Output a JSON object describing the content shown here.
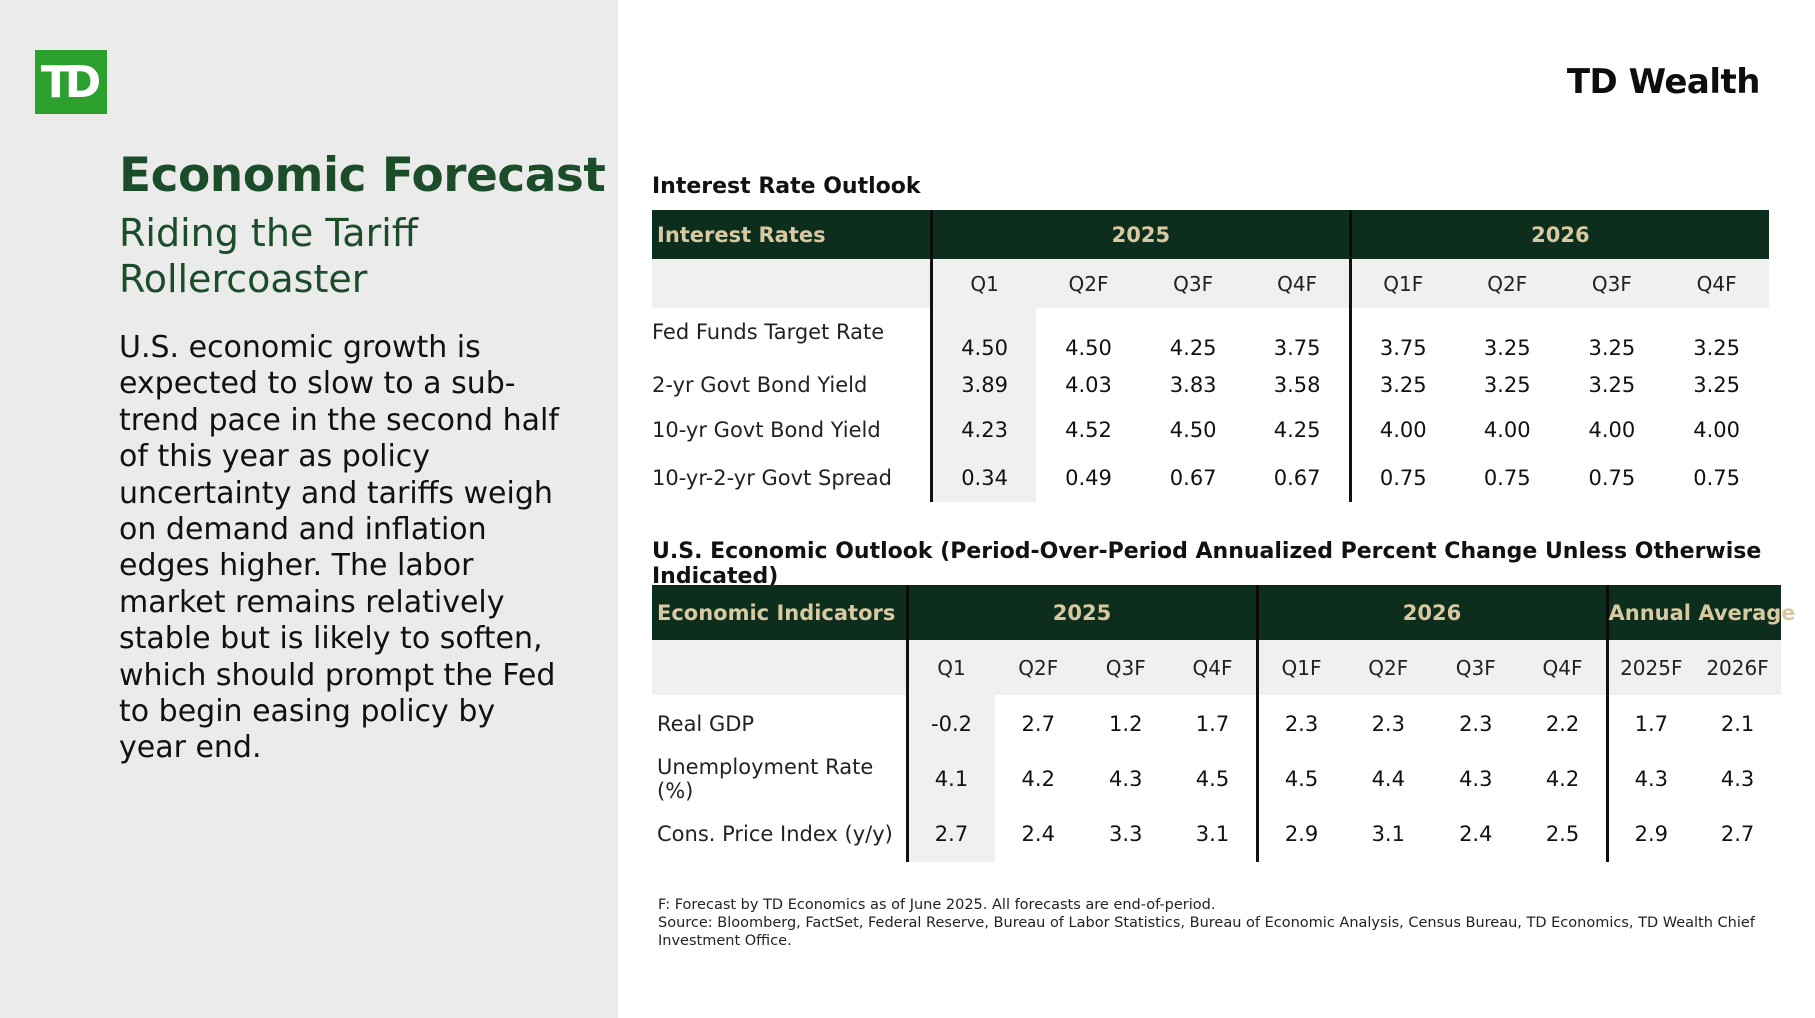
{
  "logo": {
    "text": "TD"
  },
  "brand": "TD Wealth",
  "title": "Economic Forecast",
  "subtitle": "Riding the Tariff Rollercoaster",
  "summary": "U.S. economic growth is expected to slow to a sub-trend pace in the second half of this year as policy uncertainty and tariffs weigh on demand and inflation edges higher. The labor market remains relatively stable but is likely to soften, which should prompt the Fed to begin easing policy by year end.",
  "interest_rate": {
    "section_title": "Interest Rate Outlook",
    "header_label": "Interest Rates",
    "year1": "2025",
    "year2": "2026",
    "quarters": [
      "Q1",
      "Q2F",
      "Q3F",
      "Q4F",
      "Q1F",
      "Q2F",
      "Q3F",
      "Q4F"
    ],
    "rows": [
      {
        "label": "Fed Funds Target Rate",
        "values": [
          "4.50",
          "4.50",
          "4.25",
          "3.75",
          "3.75",
          "3.25",
          "3.25",
          "3.25"
        ]
      },
      {
        "label": "2-yr Govt Bond Yield",
        "values": [
          "3.89",
          "4.03",
          "3.83",
          "3.58",
          "3.25",
          "3.25",
          "3.25",
          "3.25"
        ]
      },
      {
        "label": "10-yr Govt Bond Yield",
        "values": [
          "4.23",
          "4.52",
          "4.50",
          "4.25",
          "4.00",
          "4.00",
          "4.00",
          "4.00"
        ]
      },
      {
        "label": "10-yr-2-yr Govt Spread",
        "values": [
          "0.34",
          "0.49",
          "0.67",
          "0.67",
          "0.75",
          "0.75",
          "0.75",
          "0.75"
        ]
      }
    ]
  },
  "economic": {
    "section_title": "U.S. Economic Outlook (Period-Over-Period Annualized Percent Change Unless Otherwise Indicated)",
    "header_label": "Economic Indicators",
    "year1": "2025",
    "year2": "2026",
    "annual": "Annual Average",
    "columns": [
      "Q1",
      "Q2F",
      "Q3F",
      "Q4F",
      "Q1F",
      "Q2F",
      "Q3F",
      "Q4F",
      "2025F",
      "2026F"
    ],
    "rows": [
      {
        "label": "Real GDP",
        "values": [
          "-0.2",
          "2.7",
          "1.2",
          "1.7",
          "2.3",
          "2.3",
          "2.3",
          "2.2",
          "1.7",
          "2.1"
        ]
      },
      {
        "label": "Unemployment Rate (%)",
        "values": [
          "4.1",
          "4.2",
          "4.3",
          "4.5",
          "4.5",
          "4.4",
          "4.3",
          "4.2",
          "4.3",
          "4.3"
        ]
      },
      {
        "label": "Cons. Price Index (y/y)",
        "values": [
          "2.7",
          "2.4",
          "3.3",
          "3.1",
          "2.9",
          "3.1",
          "2.4",
          "2.5",
          "2.9",
          "2.7"
        ]
      }
    ]
  },
  "footnote": {
    "line1": "F: Forecast by TD Economics as of June 2025. All forecasts are end-of-period.",
    "line2": "Source: Bloomberg, FactSet, Federal Reserve, Bureau of Labor Statistics, Bureau of Economic Analysis, Census Bureau, TD Economics, TD Wealth Chief Investment Office."
  }
}
